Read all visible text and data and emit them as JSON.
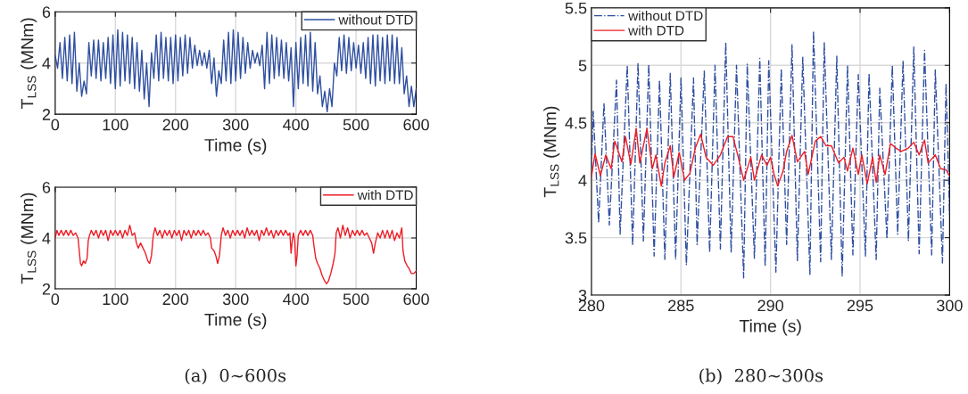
{
  "chart_data": [
    {
      "type": "line",
      "xlabel": "Time (s)",
      "ylabel": "T$_{LSS}$ (MNm)",
      "xlim": [
        0,
        600
      ],
      "ylim": [
        2,
        6
      ],
      "xticks": [
        0,
        100,
        200,
        300,
        400,
        500,
        600
      ],
      "yticks": [
        2,
        4,
        6
      ],
      "grid": true,
      "legend": "top right",
      "series": [
        {
          "name": "without DTD",
          "color": "#2f4fa0",
          "line_style": "solid",
          "x": [
            0,
            4,
            8,
            12,
            16,
            20,
            24,
            28,
            32,
            36,
            40,
            44,
            48,
            52,
            56,
            60,
            64,
            68,
            72,
            76,
            80,
            84,
            88,
            92,
            96,
            100,
            104,
            108,
            112,
            116,
            120,
            124,
            128,
            132,
            136,
            140,
            144,
            148,
            152,
            156,
            160,
            164,
            168,
            172,
            176,
            180,
            184,
            188,
            192,
            196,
            200,
            204,
            208,
            212,
            216,
            220,
            224,
            228,
            232,
            236,
            240,
            244,
            248,
            252,
            256,
            260,
            264,
            268,
            272,
            276,
            280,
            284,
            288,
            292,
            296,
            300,
            304,
            308,
            312,
            316,
            320,
            324,
            328,
            332,
            336,
            340,
            344,
            348,
            352,
            356,
            360,
            364,
            368,
            372,
            376,
            380,
            384,
            388,
            392,
            396,
            400,
            404,
            408,
            412,
            416,
            420,
            424,
            428,
            432,
            436,
            440,
            444,
            448,
            452,
            456,
            460,
            464,
            468,
            472,
            476,
            480,
            484,
            488,
            492,
            496,
            500,
            504,
            508,
            512,
            516,
            520,
            524,
            528,
            532,
            536,
            540,
            544,
            548,
            552,
            556,
            560,
            564,
            568,
            572,
            576,
            580,
            584,
            588,
            592,
            596,
            600
          ],
          "values": [
            4.3,
            3.8,
            4.8,
            3.4,
            5.0,
            3.3,
            5.1,
            3.2,
            5.2,
            2.9,
            4.0,
            2.7,
            3.3,
            2.8,
            4.8,
            3.5,
            4.9,
            3.4,
            4.9,
            3.3,
            4.8,
            3.4,
            5.0,
            3.2,
            5.1,
            3.0,
            5.3,
            3.1,
            5.2,
            3.3,
            5.1,
            3.2,
            5.0,
            3.0,
            4.8,
            2.9,
            4.5,
            2.6,
            4.0,
            2.3,
            4.4,
            3.4,
            5.1,
            3.3,
            5.2,
            3.4,
            5.0,
            3.3,
            5.0,
            3.2,
            5.1,
            3.3,
            5.0,
            3.5,
            5.1,
            3.6,
            5.0,
            3.8,
            4.7,
            3.9,
            4.5,
            3.9,
            4.4,
            3.8,
            4.5,
            3.2,
            4.2,
            2.7,
            3.7,
            3.2,
            4.9,
            3.3,
            5.2,
            3.2,
            5.3,
            3.3,
            5.2,
            3.4,
            5.0,
            3.6,
            4.8,
            3.8,
            4.5,
            4.0,
            4.4,
            3.9,
            4.7,
            3.0,
            5.2,
            3.2,
            5.1,
            3.4,
            5.0,
            3.5,
            4.9,
            3.4,
            4.8,
            3.3,
            4.6,
            2.3,
            4.8,
            3.0,
            5.0,
            3.2,
            5.1,
            3.1,
            5.2,
            2.9,
            4.8,
            2.8,
            3.5,
            2.3,
            2.9,
            2.1,
            3.0,
            2.3,
            4.0,
            3.5,
            5.0,
            3.7,
            5.1,
            3.6,
            5.0,
            3.7,
            4.8,
            3.8,
            4.7,
            3.6,
            4.8,
            3.4,
            5.0,
            3.2,
            5.1,
            3.1,
            5.1,
            3.3,
            5.0,
            3.2,
            5.1,
            3.3,
            5.1,
            3.2,
            5.0,
            3.2,
            4.6,
            2.8,
            3.5,
            2.3,
            3.1,
            2.3,
            3.0
          ]
        }
      ]
    },
    {
      "type": "line",
      "xlabel": "Time (s)",
      "ylabel": "T$_{LSS}$ (MNm)",
      "xlim": [
        0,
        600
      ],
      "ylim": [
        2,
        6
      ],
      "xticks": [
        0,
        100,
        200,
        300,
        400,
        500,
        600
      ],
      "yticks": [
        2,
        4,
        6
      ],
      "grid": true,
      "legend": "top right",
      "annotations": [
        "(a)  0∼600s"
      ],
      "series": [
        {
          "name": "with DTD",
          "color": "#ee1c25",
          "line_style": "solid",
          "x": [
            0,
            3,
            6,
            10,
            14,
            18,
            22,
            26,
            30,
            34,
            38,
            40,
            42,
            44,
            47,
            50,
            53,
            55,
            57,
            60,
            64,
            68,
            72,
            76,
            80,
            84,
            88,
            92,
            96,
            100,
            104,
            108,
            112,
            116,
            120,
            124,
            128,
            132,
            135,
            138,
            142,
            146,
            150,
            154,
            157,
            160,
            163,
            166,
            170,
            174,
            178,
            182,
            186,
            190,
            194,
            198,
            202,
            206,
            210,
            214,
            218,
            222,
            226,
            230,
            234,
            238,
            242,
            246,
            250,
            254,
            258,
            260,
            264,
            267,
            270,
            273,
            276,
            279,
            283,
            287,
            291,
            295,
            299,
            303,
            307,
            311,
            315,
            319,
            323,
            327,
            331,
            335,
            339,
            343,
            347,
            351,
            355,
            359,
            363,
            367,
            371,
            375,
            379,
            383,
            387,
            390,
            392,
            394,
            396,
            398,
            400,
            402,
            404,
            408,
            412,
            416,
            420,
            424,
            428,
            430,
            433,
            436,
            440,
            444,
            448,
            451,
            454,
            458,
            462,
            465,
            467,
            470,
            474,
            478,
            482,
            486,
            490,
            494,
            498,
            502,
            506,
            510,
            514,
            518,
            522,
            526,
            529,
            532,
            536,
            540,
            544,
            548,
            552,
            556,
            560,
            564,
            568,
            572,
            576,
            578,
            581,
            585,
            588,
            592,
            596,
            600
          ],
          "values": [
            4.0,
            4.3,
            4.1,
            4.3,
            4.1,
            4.3,
            4.1,
            4.3,
            4.1,
            4.2,
            4.0,
            3.5,
            3.0,
            2.9,
            3.1,
            3.0,
            3.2,
            3.9,
            4.1,
            4.3,
            4.1,
            4.3,
            4.0,
            4.3,
            4.1,
            4.3,
            3.9,
            4.3,
            4.1,
            4.3,
            4.1,
            4.3,
            4.0,
            4.3,
            4.1,
            4.5,
            4.1,
            4.2,
            3.8,
            3.6,
            3.8,
            3.6,
            3.4,
            3.1,
            3.0,
            3.3,
            4.1,
            4.4,
            4.1,
            4.3,
            4.0,
            4.3,
            4.1,
            4.3,
            4.0,
            4.3,
            4.1,
            4.3,
            3.9,
            4.3,
            4.1,
            4.3,
            4.0,
            4.3,
            4.1,
            4.3,
            4.1,
            4.3,
            4.1,
            4.2,
            4.0,
            3.6,
            3.5,
            3.3,
            3.0,
            3.3,
            4.1,
            4.4,
            4.1,
            4.3,
            4.0,
            4.3,
            4.1,
            4.3,
            4.1,
            4.3,
            4.0,
            4.4,
            4.1,
            4.3,
            4.1,
            4.3,
            3.9,
            4.3,
            4.1,
            4.4,
            4.1,
            4.3,
            4.0,
            4.3,
            4.1,
            4.3,
            4.1,
            4.3,
            4.1,
            4.2,
            3.4,
            3.9,
            4.2,
            3.9,
            2.9,
            3.3,
            4.1,
            4.3,
            4.1,
            4.3,
            4.1,
            4.3,
            4.1,
            3.7,
            3.2,
            3.0,
            2.8,
            2.5,
            2.3,
            2.2,
            2.3,
            2.6,
            3.0,
            3.4,
            4.2,
            4.4,
            4.0,
            4.5,
            4.1,
            4.4,
            4.0,
            4.3,
            4.1,
            4.3,
            4.1,
            4.3,
            4.1,
            4.2,
            4.0,
            3.8,
            3.4,
            3.8,
            4.2,
            4.0,
            4.3,
            4.0,
            4.3,
            4.0,
            4.3,
            3.9,
            4.2,
            4.0,
            4.4,
            3.5,
            3.1,
            2.9,
            2.8,
            2.6,
            2.6,
            2.7
          ]
        }
      ]
    },
    {
      "type": "line",
      "xlabel": "Time (s)",
      "ylabel": "T$_{LSS}$ (MNm)",
      "xlim": [
        280,
        300
      ],
      "ylim": [
        3,
        5.5
      ],
      "xticks": [
        280,
        285,
        290,
        295,
        300
      ],
      "yticks": [
        3,
        3.5,
        4,
        4.5,
        5,
        5.5
      ],
      "grid": true,
      "legend": "top left",
      "annotations": [
        "(b)  280∼300s"
      ],
      "series": [
        {
          "name": "without DTD",
          "color": "#2f4fa0",
          "line_style": "dashdot",
          "x": [
            280,
            280.1,
            280.4,
            280.7,
            281.0,
            281.4,
            281.6,
            282.0,
            282.3,
            282.6,
            282.9,
            283.2,
            283.5,
            283.8,
            284.1,
            284.4,
            284.7,
            285.0,
            285.3,
            285.7,
            285.9,
            286.3,
            286.6,
            286.9,
            287.2,
            287.5,
            287.8,
            288.1,
            288.5,
            288.7,
            289.1,
            289.4,
            289.7,
            289.9,
            290.3,
            290.6,
            290.9,
            291.2,
            291.5,
            291.8,
            292.2,
            292.4,
            292.8,
            293.0,
            293.4,
            293.7,
            294.0,
            294.3,
            294.6,
            294.9,
            295.3,
            295.5,
            295.9,
            296.1,
            296.5,
            296.8,
            297.1,
            297.4,
            297.7,
            298.0,
            298.3,
            298.6,
            299.0,
            299.2,
            299.6,
            299.8,
            300
          ],
          "values": [
            4.1,
            4.6,
            3.63,
            4.67,
            3.61,
            4.87,
            3.53,
            5.0,
            3.43,
            5.02,
            3.47,
            5.01,
            3.34,
            4.87,
            3.31,
            4.93,
            3.31,
            4.89,
            3.26,
            4.89,
            3.44,
            4.95,
            3.37,
            5.0,
            3.4,
            5.2,
            3.37,
            5.0,
            3.15,
            5.01,
            3.32,
            5.06,
            3.25,
            5.04,
            3.2,
            4.97,
            3.44,
            5.18,
            3.3,
            5.07,
            3.18,
            5.3,
            3.29,
            5.2,
            3.31,
            5.08,
            3.16,
            5.0,
            3.35,
            4.92,
            3.34,
            4.93,
            3.31,
            4.8,
            3.49,
            5.0,
            3.53,
            5.04,
            3.47,
            5.16,
            3.36,
            5.13,
            3.35,
            4.96,
            3.28,
            4.84,
            3.7
          ]
        },
        {
          "name": "with DTD",
          "color": "#ee1c25",
          "line_style": "solid",
          "x": [
            280.0,
            280.2,
            280.5,
            280.8,
            281.1,
            281.3,
            281.7,
            281.9,
            282.2,
            282.5,
            282.7,
            283.1,
            283.4,
            283.6,
            283.9,
            284.1,
            284.4,
            284.6,
            284.9,
            285.2,
            285.5,
            285.8,
            286.1,
            286.4,
            286.8,
            287.2,
            287.6,
            287.9,
            288.2,
            288.5,
            288.9,
            289.1,
            289.5,
            289.8,
            290.0,
            290.2,
            290.4,
            290.7,
            290.9,
            291.2,
            291.5,
            291.9,
            292.1,
            292.5,
            292.8,
            293.1,
            293.4,
            293.8,
            294.1,
            294.3,
            294.6,
            294.9,
            295.1,
            295.4,
            295.7,
            295.9,
            296.1,
            296.4,
            296.7,
            297.0,
            297.3,
            297.7,
            298.0,
            298.3,
            298.6,
            298.8,
            299.2,
            299.5,
            299.8,
            300.0
          ],
          "values": [
            4.03,
            4.23,
            4.04,
            4.22,
            4.1,
            4.34,
            4.16,
            4.38,
            4.14,
            4.45,
            4.15,
            4.45,
            4.1,
            4.22,
            3.95,
            4.15,
            4.3,
            4.03,
            4.24,
            4.0,
            4.06,
            4.28,
            4.4,
            4.2,
            4.13,
            4.22,
            4.38,
            4.38,
            4.2,
            4.0,
            4.2,
            4.0,
            4.22,
            4.13,
            4.2,
            4.05,
            3.95,
            4.08,
            4.25,
            4.39,
            4.16,
            4.25,
            4.05,
            4.34,
            4.38,
            4.3,
            4.3,
            4.15,
            4.2,
            4.08,
            4.28,
            4.05,
            4.22,
            3.97,
            4.2,
            3.98,
            4.22,
            4.05,
            4.32,
            4.28,
            4.25,
            4.28,
            4.33,
            4.22,
            4.35,
            4.15,
            4.22,
            4.1,
            4.09,
            4.04
          ]
        }
      ]
    }
  ]
}
